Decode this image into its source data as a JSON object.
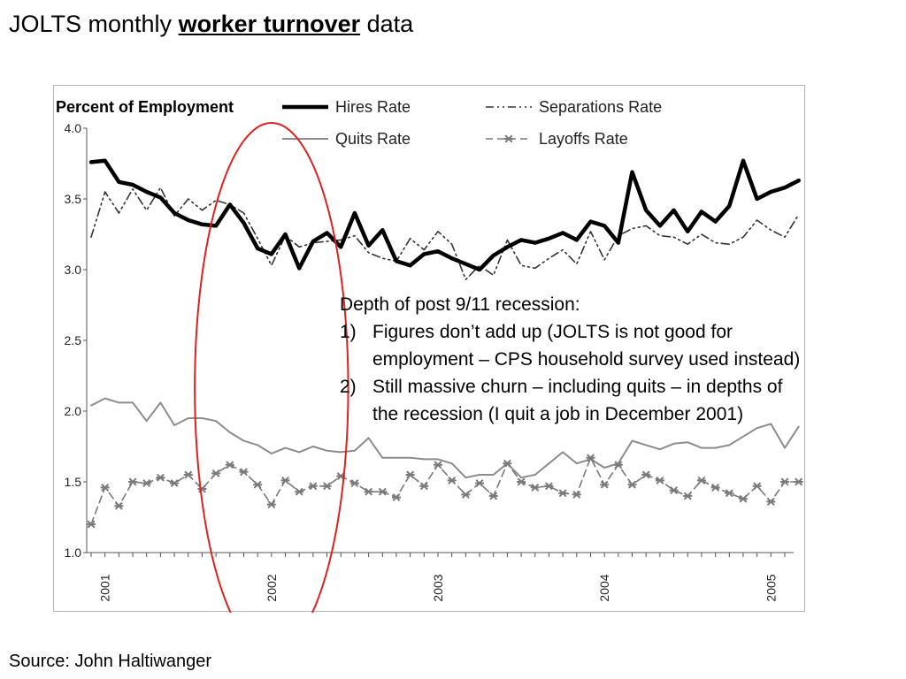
{
  "slide": {
    "title_prefix": "JOLTS monthly ",
    "title_emphasis": "worker turnover",
    "title_suffix": " data",
    "source": "Source: John Haltiwanger"
  },
  "annotation": {
    "heading": "Depth of post 9/11 recession:",
    "items": [
      {
        "num": "1)",
        "line1": "Figures don’t add up (JOLTS is not good for",
        "line2": "employment – CPS household survey used instead)"
      },
      {
        "num": "2)",
        "line1": "Still massive churn – including quits – in depths of",
        "line2": "the recession (I quit a job in December 2001)"
      }
    ]
  },
  "chart_data": {
    "type": "line",
    "ylabel": "Percent of Employment",
    "xlabel": "",
    "ylim": [
      1.0,
      4.0
    ],
    "yticks": [
      "1.0",
      "1.5",
      "2.0",
      "2.5",
      "3.0",
      "3.5",
      "4.0"
    ],
    "xticks": [
      "2001",
      "2002",
      "2003",
      "2004",
      "2005"
    ],
    "x_start": "2000-12",
    "x_end": "2005-02",
    "highlight": {
      "from": "2001-09",
      "to": "2002-05",
      "color": "#e02020"
    },
    "series": [
      {
        "name": "Hires Rate",
        "color": "#000000",
        "values": [
          3.76,
          3.77,
          3.62,
          3.6,
          3.55,
          3.51,
          3.4,
          3.35,
          3.32,
          3.31,
          3.46,
          3.33,
          3.15,
          3.11,
          3.25,
          3.01,
          3.2,
          3.26,
          3.16,
          3.4,
          3.17,
          3.28,
          3.06,
          3.03,
          3.11,
          3.13,
          3.08,
          3.04,
          3.0,
          3.1,
          3.16,
          3.21,
          3.19,
          3.22,
          3.26,
          3.21,
          3.34,
          3.31,
          3.19,
          3.69,
          3.42,
          3.31,
          3.42,
          3.27,
          3.41,
          3.34,
          3.45,
          3.77,
          3.5,
          3.55,
          3.58,
          3.63
        ]
      },
      {
        "name": "Separations Rate",
        "color": "#333333",
        "values": [
          3.23,
          3.55,
          3.4,
          3.57,
          3.42,
          3.58,
          3.38,
          3.5,
          3.42,
          3.49,
          3.46,
          3.4,
          3.22,
          3.03,
          3.24,
          3.16,
          3.19,
          3.2,
          3.21,
          3.24,
          3.12,
          3.08,
          3.06,
          3.22,
          3.14,
          3.27,
          3.18,
          2.93,
          3.03,
          2.96,
          3.21,
          3.03,
          3.01,
          3.08,
          3.14,
          3.04,
          3.27,
          3.07,
          3.24,
          3.29,
          3.31,
          3.24,
          3.23,
          3.18,
          3.25,
          3.19,
          3.18,
          3.23,
          3.35,
          3.28,
          3.23,
          3.39
        ]
      },
      {
        "name": "Quits Rate",
        "color": "#8c8c8c",
        "values": [
          2.04,
          2.09,
          2.06,
          2.06,
          1.93,
          2.06,
          1.9,
          1.95,
          1.95,
          1.93,
          1.85,
          1.79,
          1.76,
          1.7,
          1.74,
          1.71,
          1.75,
          1.72,
          1.71,
          1.72,
          1.81,
          1.67,
          1.67,
          1.67,
          1.66,
          1.66,
          1.63,
          1.53,
          1.55,
          1.55,
          1.63,
          1.53,
          1.55,
          1.63,
          1.71,
          1.63,
          1.66,
          1.6,
          1.63,
          1.79,
          1.76,
          1.73,
          1.77,
          1.78,
          1.74,
          1.74,
          1.76,
          1.82,
          1.88,
          1.91,
          1.74,
          1.89
        ]
      },
      {
        "name": "Layoffs Rate",
        "color": "#7a7a7a",
        "values": [
          1.2,
          1.46,
          1.33,
          1.5,
          1.49,
          1.53,
          1.49,
          1.55,
          1.45,
          1.56,
          1.62,
          1.57,
          1.48,
          1.34,
          1.51,
          1.43,
          1.47,
          1.47,
          1.54,
          1.49,
          1.43,
          1.43,
          1.39,
          1.55,
          1.47,
          1.62,
          1.51,
          1.41,
          1.49,
          1.4,
          1.63,
          1.5,
          1.46,
          1.47,
          1.42,
          1.41,
          1.67,
          1.48,
          1.62,
          1.48,
          1.55,
          1.51,
          1.44,
          1.4,
          1.51,
          1.46,
          1.42,
          1.38,
          1.47,
          1.36,
          1.5,
          1.5
        ]
      }
    ],
    "legend_position": "top"
  }
}
